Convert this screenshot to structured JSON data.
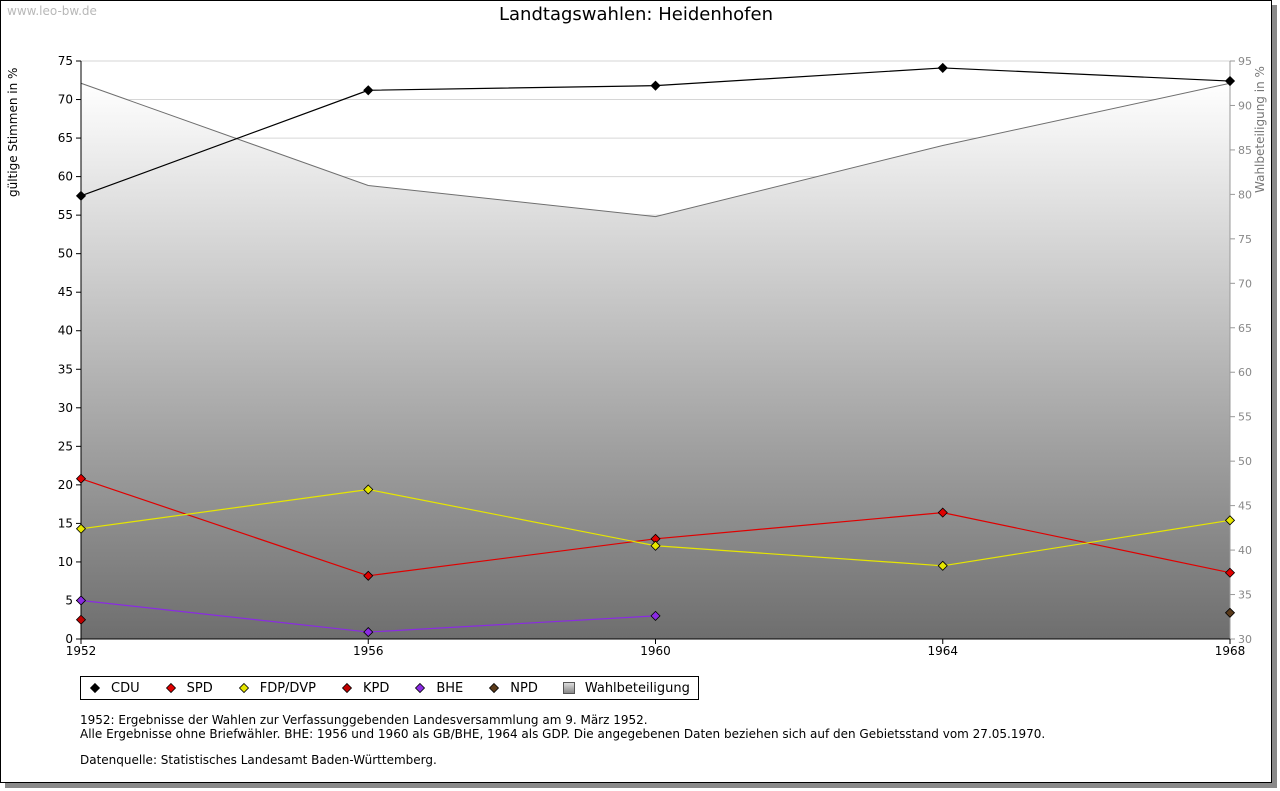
{
  "header": {
    "watermark": "www.leo-bw.de"
  },
  "chart_data": {
    "type": "line",
    "title": "Landtagswahlen: Heidenhofen",
    "xlabel": "",
    "ylabel": "gültige Stimmen in %",
    "ylabel_right": "Wahlbeteiligung in %",
    "categories": [
      "1952",
      "1956",
      "1960",
      "1964",
      "1968"
    ],
    "ylim": [
      0,
      75
    ],
    "y_ticks": [
      0,
      5,
      10,
      15,
      20,
      25,
      30,
      35,
      40,
      45,
      50,
      55,
      60,
      65,
      70,
      75
    ],
    "ylim_right": [
      30,
      95
    ],
    "y_ticks_right": [
      30,
      35,
      40,
      45,
      50,
      55,
      60,
      65,
      70,
      75,
      80,
      85,
      90,
      95
    ],
    "turnout": {
      "name": "Wahlbeteiligung",
      "values": [
        92.5,
        81.0,
        77.5,
        85.5,
        92.5
      ]
    },
    "series": [
      {
        "name": "CDU",
        "color": "#000000",
        "values": [
          57.5,
          71.2,
          71.8,
          74.1,
          72.4
        ]
      },
      {
        "name": "SPD",
        "color": "#e00000",
        "values": [
          20.8,
          8.2,
          13.0,
          16.4,
          8.6
        ]
      },
      {
        "name": "FDP/DVP",
        "color": "#e6e600",
        "values": [
          14.3,
          19.4,
          12.1,
          9.5,
          15.4
        ]
      },
      {
        "name": "KPD",
        "color": "#c00000",
        "values": [
          2.5,
          null,
          null,
          null,
          null
        ]
      },
      {
        "name": "BHE",
        "color": "#8a2be2",
        "values": [
          5.0,
          0.9,
          3.0,
          null,
          null
        ]
      },
      {
        "name": "NPD",
        "color": "#5a3a1a",
        "values": [
          null,
          null,
          null,
          null,
          3.4
        ]
      }
    ]
  },
  "legend": {
    "items": [
      {
        "label": "CDU",
        "color": "#000000",
        "shape": "diamond"
      },
      {
        "label": "SPD",
        "color": "#e00000",
        "shape": "diamond"
      },
      {
        "label": "FDP/DVP",
        "color": "#e6e600",
        "shape": "diamond"
      },
      {
        "label": "KPD",
        "color": "#c00000",
        "shape": "diamond"
      },
      {
        "label": "BHE",
        "color": "#8a2be2",
        "shape": "diamond"
      },
      {
        "label": "NPD",
        "color": "#5a3a1a",
        "shape": "diamond"
      },
      {
        "label": "Wahlbeteiligung",
        "color": "#999999",
        "shape": "box"
      }
    ]
  },
  "notes": {
    "line1": "1952: Ergebnisse der Wahlen zur Verfassunggebenden Landesversammlung am 9. März 1952.",
    "line2": "Alle Ergebnisse ohne Briefwähler. BHE: 1956 und 1960 als GB/BHE, 1964 als GDP. Die angegebenen Daten beziehen sich auf den Gebietsstand vom 27.05.1970.",
    "source": "Datenquelle: Statistisches Landesamt Baden-Württemberg."
  }
}
